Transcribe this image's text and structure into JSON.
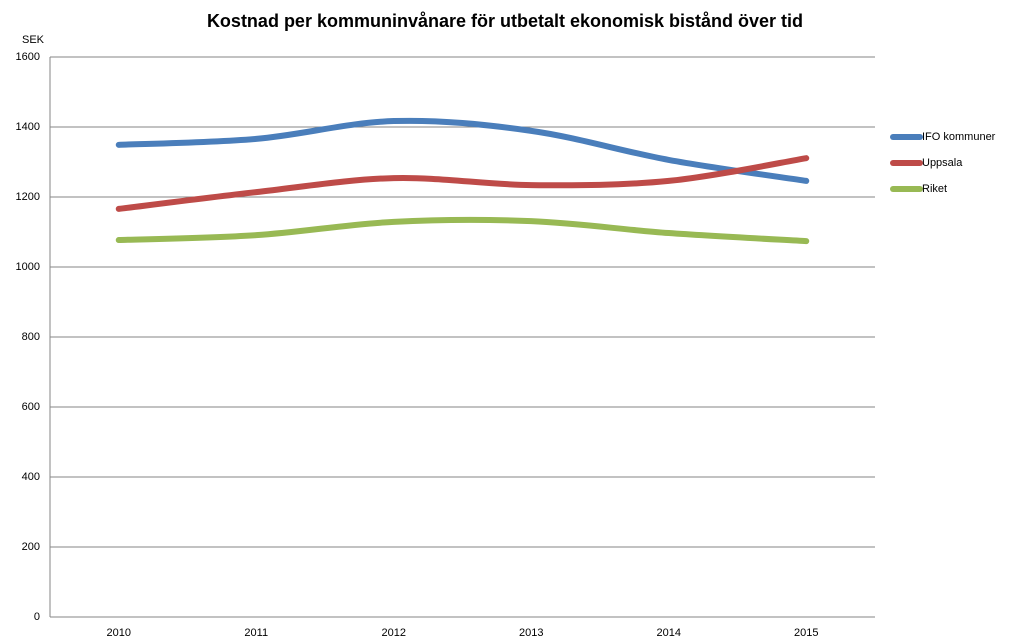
{
  "chart_data": {
    "type": "line",
    "title": "Kostnad per kommuninvånare för utbetalt ekonomisk bistånd över tid",
    "y_label": "SEK",
    "categories": [
      "2010",
      "2011",
      "2012",
      "2013",
      "2014",
      "2015"
    ],
    "series": [
      {
        "name": "IFO kommuner",
        "color": "#4a7ebb",
        "values": [
          1349,
          1366,
          1417,
          1389,
          1306,
          1246
        ]
      },
      {
        "name": "Uppsala",
        "color": "#be4b48",
        "values": [
          1166,
          1214,
          1254,
          1234,
          1246,
          1311
        ]
      },
      {
        "name": "Riket",
        "color": "#98b954",
        "values": [
          1077,
          1091,
          1129,
          1131,
          1097,
          1074
        ]
      }
    ],
    "ylim": [
      0,
      1600
    ],
    "yticks": [
      0,
      200,
      400,
      600,
      800,
      1000,
      1200,
      1400,
      1600
    ],
    "grid": true,
    "smooth": true,
    "legend": "right"
  }
}
